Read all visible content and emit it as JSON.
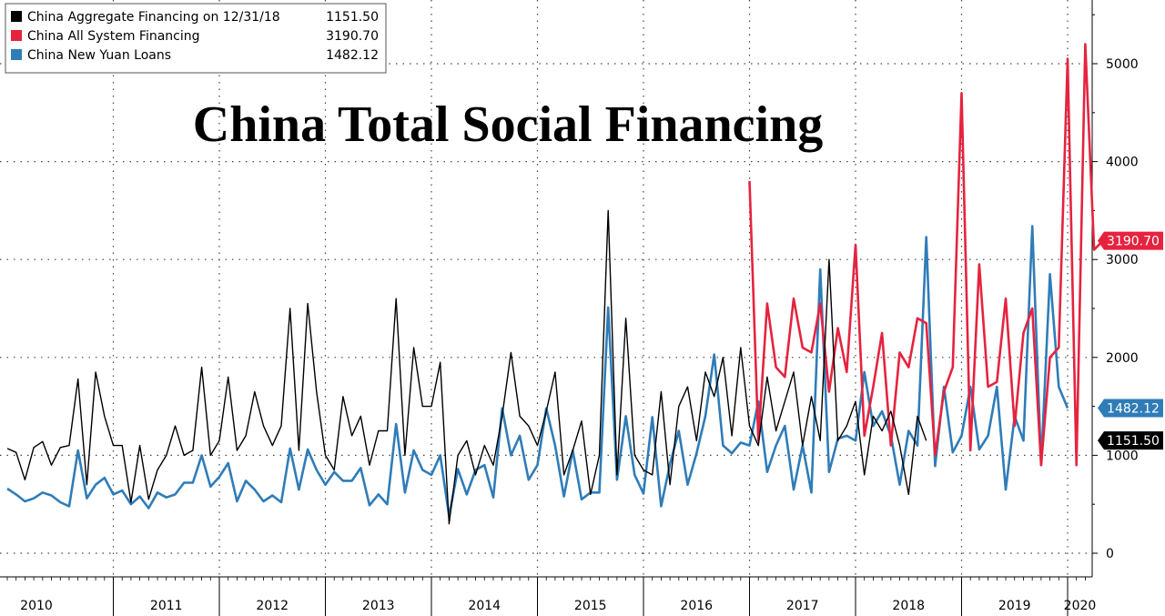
{
  "chart_data": {
    "type": "line",
    "title": "China Total Social Financing",
    "xlabel": "",
    "ylabel": "",
    "ylim": [
      -200,
      5550
    ],
    "yticks": [
      0,
      1000,
      2000,
      3000,
      4000,
      5000
    ],
    "grid": true,
    "legend_position": "top-left",
    "years": [
      "2010",
      "2011",
      "2012",
      "2013",
      "2014",
      "2015",
      "2016",
      "2017",
      "2018",
      "2019",
      "2020"
    ],
    "x_start": "2010-01",
    "x_end": "2020-06",
    "series": [
      {
        "name": "China Aggregate Financing on 12/31/18",
        "color": "#000000",
        "last_value": "1151.50",
        "start": "2010-01",
        "values": [
          1070,
          1030,
          750,
          1080,
          1140,
          900,
          1080,
          1100,
          1780,
          700,
          1850,
          1400,
          1100,
          1100,
          520,
          1100,
          550,
          850,
          1000,
          1300,
          1000,
          1050,
          1900,
          1000,
          1150,
          1800,
          1050,
          1200,
          1650,
          1300,
          1100,
          1300,
          2500,
          1050,
          2550,
          1650,
          1000,
          850,
          1600,
          1200,
          1400,
          900,
          1250,
          1250,
          2600,
          1000,
          2100,
          1500,
          1500,
          1950,
          300,
          1000,
          1150,
          800,
          1100,
          900,
          1400,
          2050,
          1400,
          1300,
          1100,
          1450,
          1850,
          800,
          1050,
          1350,
          600,
          1000,
          3500,
          800,
          2400,
          1000,
          850,
          800,
          1650,
          700,
          1500,
          1700,
          1150,
          1850,
          1600,
          2000,
          1200,
          2100,
          1300,
          1100,
          1800,
          1250,
          1550,
          1850,
          1100,
          1600,
          1150,
          3000,
          1150,
          1300,
          1550,
          800,
          1400,
          1250,
          1450,
          1100,
          600,
          1400,
          1150
        ]
      },
      {
        "name": "China All System Financing",
        "color": "#e5233f",
        "last_value": "3190.70",
        "start": "2017-01",
        "values": [
          3800,
          1150,
          2550,
          1900,
          1800,
          2600,
          2100,
          2050,
          2550,
          1650,
          2300,
          1850,
          3150,
          1200,
          1700,
          2250,
          1100,
          2050,
          1900,
          2400,
          2350,
          1000,
          1650,
          1900,
          4700,
          1050,
          2950,
          1700,
          1750,
          2600,
          1300,
          2250,
          2500,
          900,
          2000,
          2100,
          5050,
          900,
          5200,
          3100,
          3190.7
        ]
      },
      {
        "name": "China New Yuan Loans",
        "color": "#2f7cb8",
        "last_value": "1482.12",
        "start": "2010-01",
        "values": [
          660,
          600,
          530,
          560,
          620,
          590,
          520,
          480,
          1050,
          560,
          700,
          770,
          600,
          640,
          500,
          580,
          460,
          620,
          570,
          600,
          720,
          720,
          1000,
          680,
          780,
          920,
          530,
          740,
          650,
          530,
          590,
          520,
          1070,
          650,
          1060,
          850,
          700,
          830,
          740,
          740,
          870,
          490,
          600,
          500,
          1320,
          620,
          1050,
          850,
          800,
          1000,
          380,
          860,
          600,
          850,
          900,
          570,
          1480,
          1000,
          1200,
          750,
          900,
          1480,
          1100,
          580,
          1050,
          550,
          620,
          620,
          2510,
          750,
          1400,
          800,
          610,
          1390,
          480,
          910,
          1250,
          700,
          1020,
          1400,
          2030,
          1100,
          1020,
          1130,
          1100,
          1550,
          830,
          1100,
          1300,
          650,
          1100,
          620,
          2900,
          830,
          1170,
          1200,
          1150,
          1850,
          1300,
          1450,
          1200,
          700,
          1250,
          1100,
          3230,
          890,
          1700,
          1030,
          1200,
          1700,
          1060,
          1200,
          1700,
          650,
          1400,
          1150,
          3340,
          900,
          2850,
          1700,
          1482.12
        ]
      }
    ]
  }
}
